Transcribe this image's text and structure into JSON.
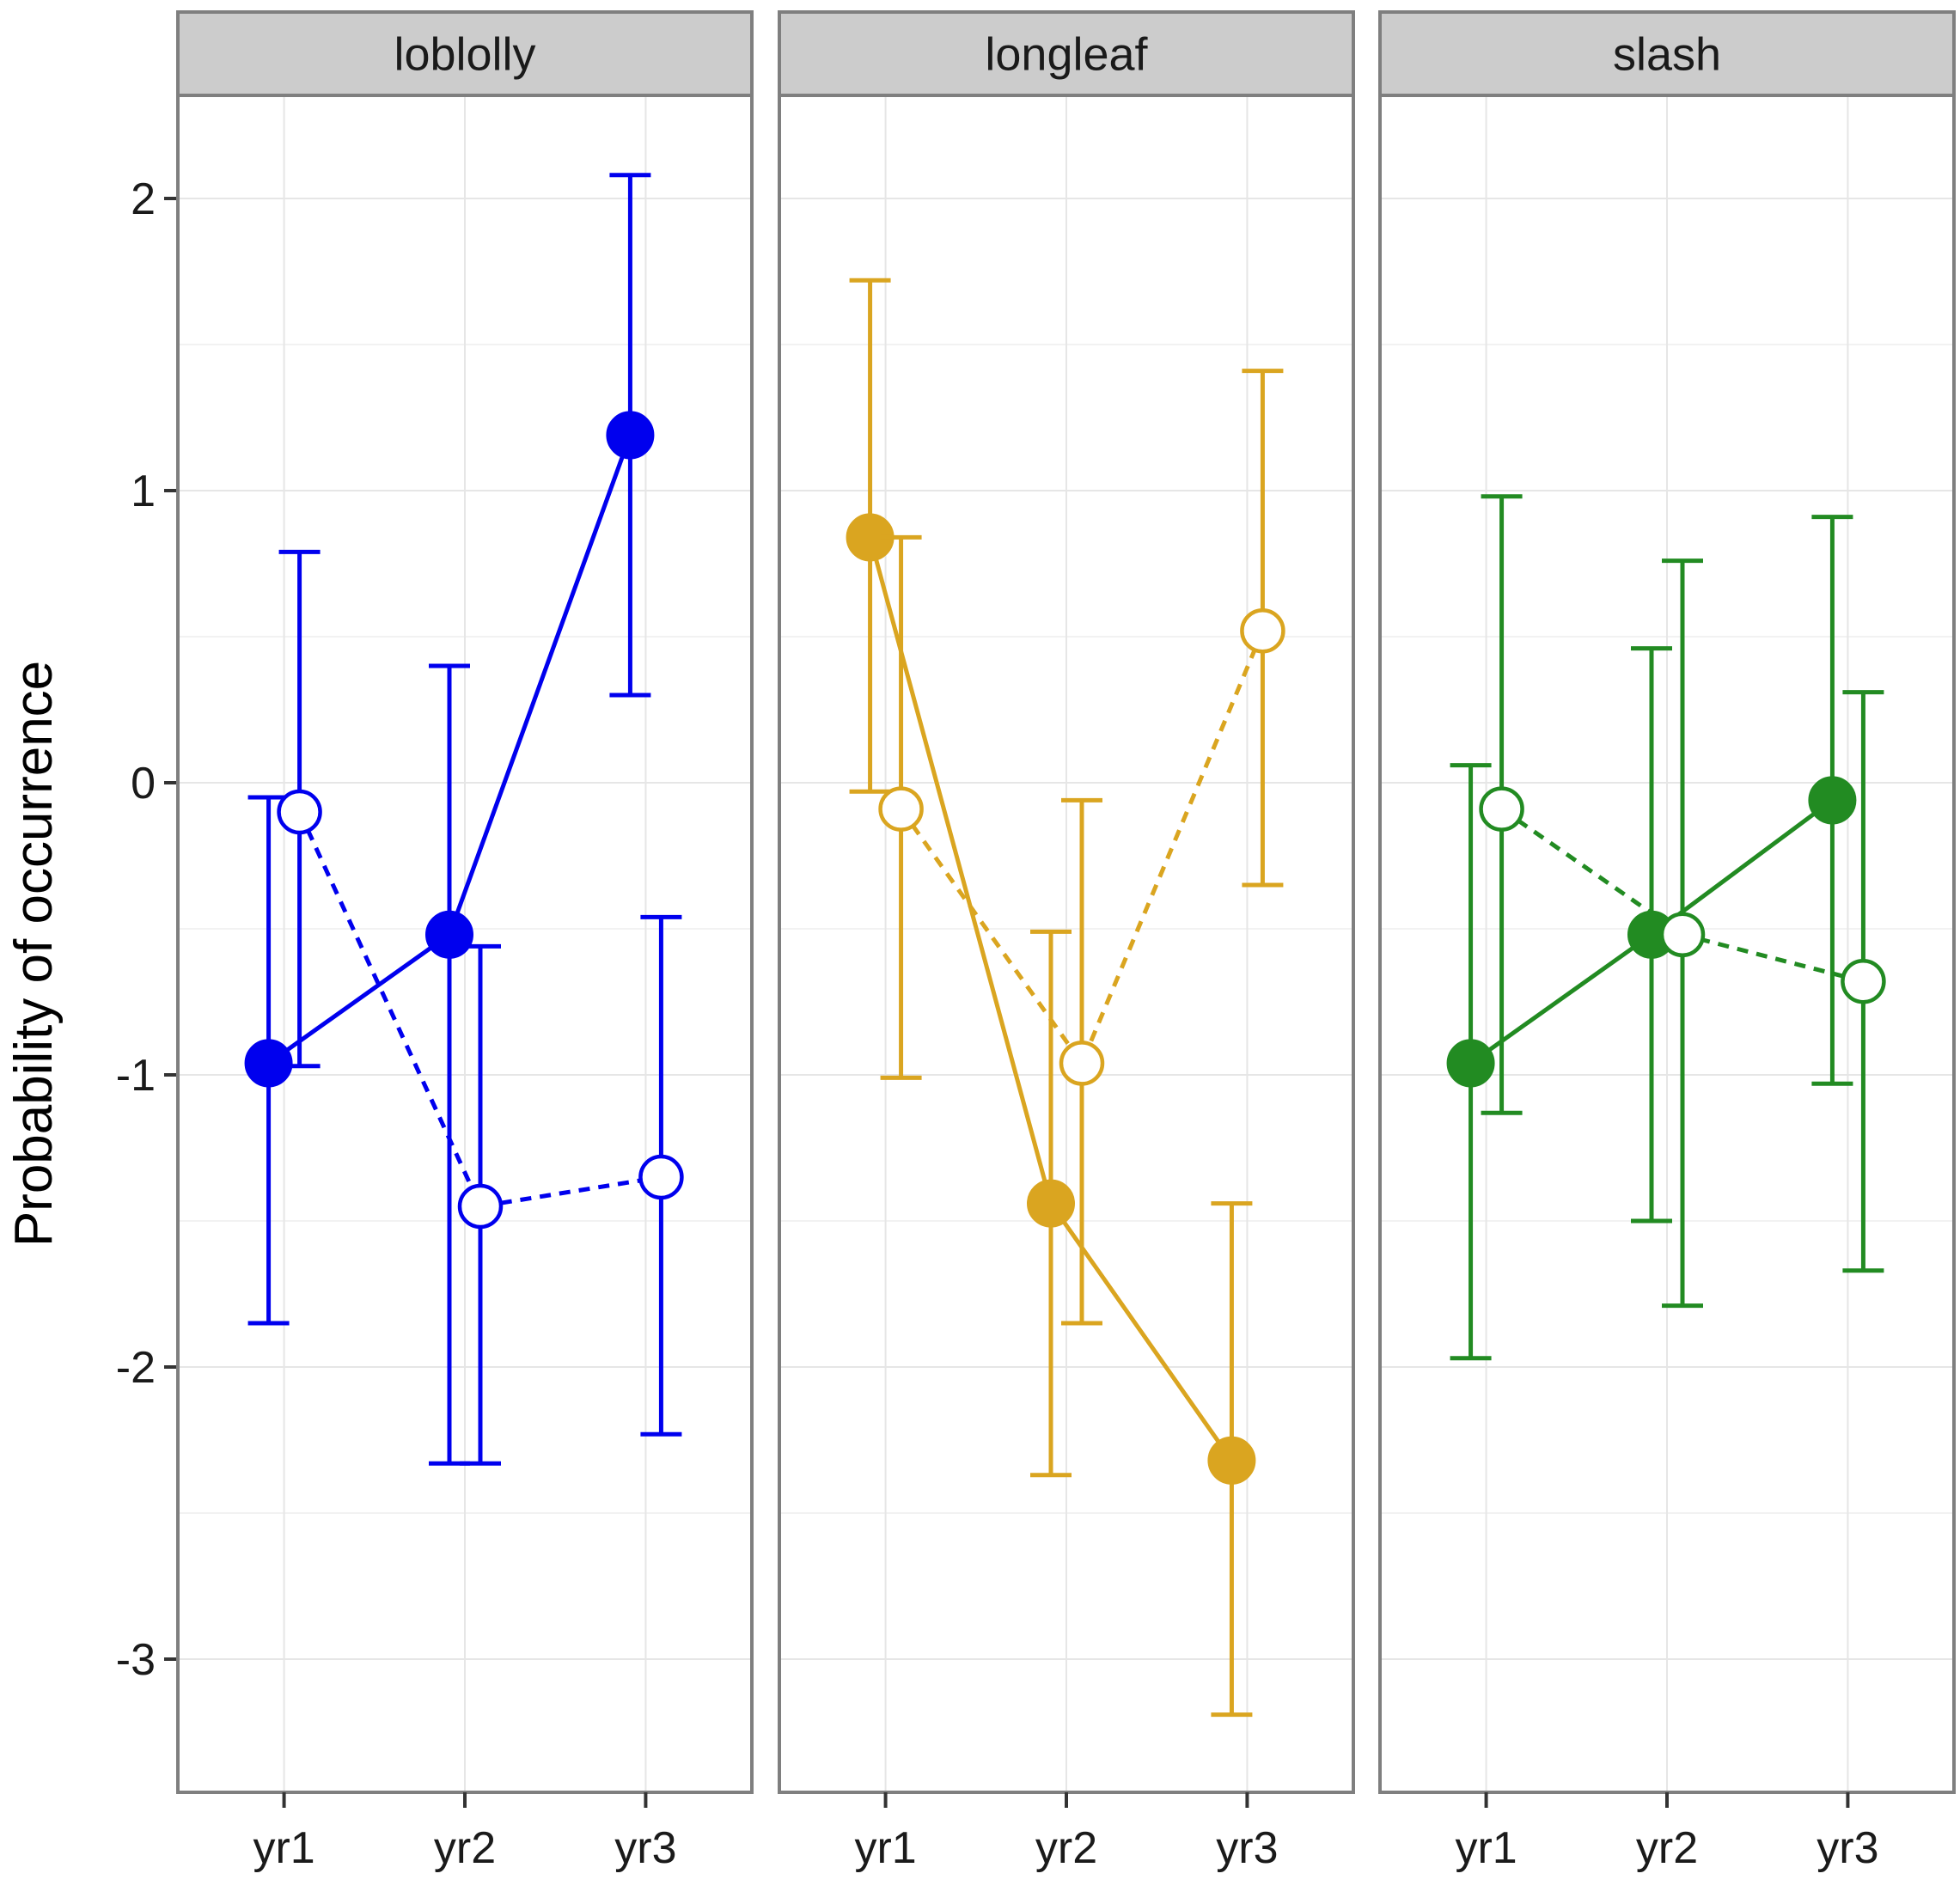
{
  "chart_data": {
    "type": "line",
    "ylabel": "Probability of occurrence",
    "xlabel": "",
    "ylim": [
      -3.45,
      2.35
    ],
    "yticks": [
      -3,
      -2,
      -1,
      0,
      1,
      2
    ],
    "ytick_labels": [
      "-3",
      "-2",
      "-1",
      "0",
      "1",
      "2"
    ],
    "categories": [
      "yr1",
      "yr2",
      "yr3"
    ],
    "grid": true,
    "panels": [
      {
        "label": "loblolly",
        "color": "#0000ee",
        "series": [
          {
            "name": "solid",
            "filled": true,
            "linestyle": "solid",
            "values": [
              -0.96,
              -0.52,
              1.19
            ],
            "lower": [
              -1.85,
              -2.33,
              0.3
            ],
            "upper": [
              -0.05,
              0.4,
              2.08
            ]
          },
          {
            "name": "dashed",
            "filled": false,
            "linestyle": "dashed",
            "values": [
              -0.1,
              -1.45,
              -1.35
            ],
            "lower": [
              -0.97,
              -2.33,
              -2.23
            ],
            "upper": [
              0.79,
              -0.56,
              -0.46
            ]
          }
        ]
      },
      {
        "label": "longleaf",
        "color": "#daa520",
        "series": [
          {
            "name": "solid",
            "filled": true,
            "linestyle": "solid",
            "values": [
              0.84,
              -1.44,
              -2.32
            ],
            "lower": [
              -0.03,
              -2.37,
              -3.19
            ],
            "upper": [
              1.72,
              -0.51,
              -1.44
            ]
          },
          {
            "name": "dashed",
            "filled": false,
            "linestyle": "dashed",
            "values": [
              -0.09,
              -0.96,
              0.52
            ],
            "lower": [
              -1.01,
              -1.85,
              -0.35
            ],
            "upper": [
              0.84,
              -0.06,
              1.41
            ]
          }
        ]
      },
      {
        "label": "slash",
        "color": "#228b22",
        "series": [
          {
            "name": "solid",
            "filled": true,
            "linestyle": "solid",
            "values": [
              -0.96,
              -0.52,
              -0.06
            ],
            "lower": [
              -1.97,
              -1.5,
              -1.03
            ],
            "upper": [
              0.06,
              0.46,
              0.91
            ]
          },
          {
            "name": "dashed",
            "filled": false,
            "linestyle": "dashed",
            "values": [
              -0.09,
              -0.52,
              -0.68
            ],
            "lower": [
              -1.13,
              -1.79,
              -1.67
            ],
            "upper": [
              0.98,
              0.76,
              0.31
            ]
          }
        ]
      }
    ]
  }
}
